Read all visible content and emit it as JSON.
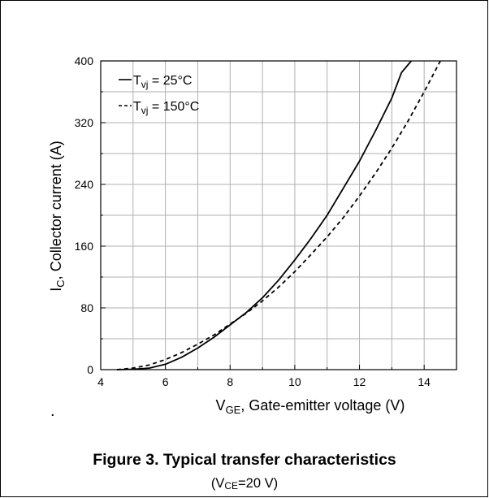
{
  "chart_data": {
    "type": "line",
    "xlabel": "V_GE, Gate-emitter voltage (V)",
    "xlabel_main": "V",
    "xlabel_sub": "GE",
    "xlabel_rest": ", Gate-emitter voltage (V)",
    "ylabel": "I_C, Collector current (A)",
    "ylabel_main": "I",
    "ylabel_sub": "C",
    "ylabel_rest": ", Collector current (A)",
    "xlim": [
      4,
      15
    ],
    "ylim": [
      0,
      400
    ],
    "xticks": [
      "4",
      "6",
      "8",
      "10",
      "12",
      "14"
    ],
    "yticks": [
      "0",
      "80",
      "160",
      "240",
      "320",
      "400"
    ],
    "grid": true,
    "legend_position": "top-left",
    "series": [
      {
        "name": "T_vj = 25°C",
        "name_main": "T",
        "name_sub": "vj",
        "name_rest": " = 25°C",
        "style": "solid",
        "x": [
          4.5,
          5.0,
          5.5,
          6.0,
          6.5,
          7.0,
          7.5,
          8.0,
          8.5,
          9.0,
          9.5,
          10.0,
          10.5,
          11.0,
          11.5,
          12.0,
          12.5,
          13.0,
          13.3,
          13.6
        ],
        "y": [
          0,
          0.5,
          2,
          7,
          16,
          28,
          42,
          58,
          74,
          93,
          116,
          142,
          170,
          200,
          235,
          270,
          310,
          352,
          385,
          400
        ]
      },
      {
        "name": "T_vj = 150°C",
        "name_main": "T",
        "name_sub": "vj",
        "name_rest": " = 150°C",
        "style": "dashed",
        "x": [
          4.5,
          5.0,
          5.5,
          6.0,
          6.5,
          7.0,
          7.5,
          8.0,
          8.5,
          9.0,
          9.5,
          10.0,
          10.5,
          11.0,
          11.5,
          12.0,
          12.5,
          13.0,
          13.5,
          14.0,
          14.5
        ],
        "y": [
          0,
          2,
          6,
          13,
          22,
          33,
          45,
          59,
          73,
          89,
          107,
          127,
          149,
          172,
          197,
          225,
          255,
          287,
          322,
          360,
          400
        ]
      }
    ]
  },
  "caption": {
    "title": "Figure 3. Typical transfer characteristics",
    "sub_open": "(V",
    "sub_sub": "CE",
    "sub_close": "=20 V)"
  },
  "stray_mark": "."
}
